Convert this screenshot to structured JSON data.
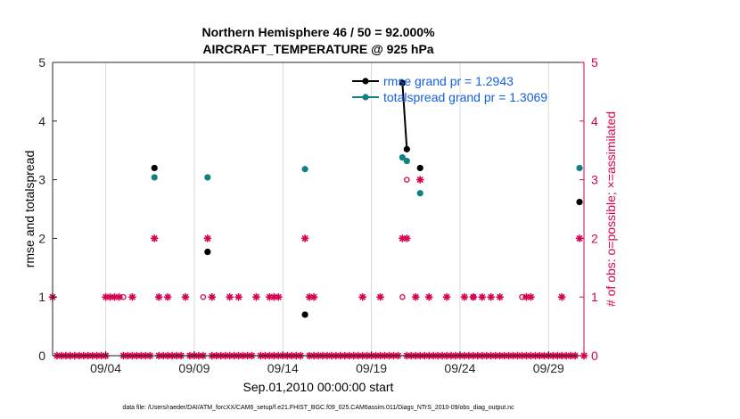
{
  "chart_data": {
    "type": "scatter",
    "title_line1": "Northern Hemisphere 46 / 50 = 92.000%",
    "title_line2": "AIRCRAFT_TEMPERATURE @ 925 hPa",
    "ylabel_left": "rmse and totalspread",
    "ylabel_right": "# of obs: o=possible; ×=assimilated",
    "xlabel": "Sep.01,2010 00:00:00 start",
    "footer": "data file: /Users/raeder/DAI/ATM_forcXX/CAM6_setup/f.e21.FHIST_BGC.f09_025.CAM6assim.011/Diags_NTrS_2010-09/obs_diag_output.nc",
    "xlim": [
      0,
      30
    ],
    "ylim_left": [
      0,
      5
    ],
    "ylim_right": [
      0,
      5
    ],
    "yticks_left": [
      "0",
      "1",
      "2",
      "3",
      "4",
      "5"
    ],
    "yticks_right": [
      "0",
      "1",
      "2",
      "3",
      "4",
      "5"
    ],
    "xticks": [
      {
        "x": 3.0,
        "label": "09/04"
      },
      {
        "x": 8.0,
        "label": "09/09"
      },
      {
        "x": 13.0,
        "label": "09/14"
      },
      {
        "x": 18.0,
        "label": "09/19"
      },
      {
        "x": 23.0,
        "label": "09/24"
      },
      {
        "x": 28.0,
        "label": "09/29"
      }
    ],
    "colors": {
      "rmse": "#000000",
      "spread": "#108080",
      "obs": "#d6004f",
      "legend_text": "#1560e0",
      "right_axis": "#d6004f"
    },
    "legend": [
      {
        "series": "rmse",
        "label": "rmse grand pr = 1.2943"
      },
      {
        "series": "spread",
        "label": "totalspread grand pr = 1.3069"
      }
    ],
    "series": [
      {
        "name": "rmse",
        "axis": "left",
        "points": [
          [
            5.75,
            3.2
          ],
          [
            8.75,
            1.77
          ],
          [
            14.25,
            0.7
          ],
          [
            19.75,
            4.65
          ],
          [
            20.0,
            3.52
          ],
          [
            20.75,
            3.2
          ],
          [
            29.75,
            2.62
          ]
        ],
        "lines": [
          [
            [
              19.75,
              4.65
            ],
            [
              20.0,
              3.52
            ]
          ]
        ]
      },
      {
        "name": "spread",
        "axis": "left",
        "points": [
          [
            5.75,
            3.04
          ],
          [
            8.75,
            3.04
          ],
          [
            14.25,
            3.18
          ],
          [
            19.75,
            3.38
          ],
          [
            20.0,
            3.32
          ],
          [
            20.75,
            2.77
          ],
          [
            29.75,
            3.2
          ]
        ]
      },
      {
        "name": "assimilated",
        "axis": "right",
        "points": [
          [
            0.0,
            1
          ],
          [
            0.25,
            0
          ],
          [
            0.5,
            0
          ],
          [
            0.75,
            0
          ],
          [
            1.0,
            0
          ],
          [
            1.25,
            0
          ],
          [
            1.5,
            0
          ],
          [
            1.75,
            0
          ],
          [
            2.0,
            0
          ],
          [
            2.25,
            0
          ],
          [
            2.5,
            0
          ],
          [
            2.75,
            0
          ],
          [
            3.0,
            0
          ],
          [
            3.0,
            1
          ],
          [
            3.25,
            1
          ],
          [
            3.5,
            1
          ],
          [
            3.75,
            1
          ],
          [
            4.0,
            0
          ],
          [
            4.25,
            0
          ],
          [
            4.5,
            0
          ],
          [
            4.5,
            1
          ],
          [
            4.75,
            0
          ],
          [
            5.0,
            0
          ],
          [
            5.25,
            0
          ],
          [
            5.5,
            0
          ],
          [
            5.75,
            2
          ],
          [
            6.0,
            0
          ],
          [
            6.0,
            1
          ],
          [
            6.25,
            0
          ],
          [
            6.5,
            0
          ],
          [
            6.5,
            1
          ],
          [
            6.75,
            0
          ],
          [
            7.0,
            0
          ],
          [
            7.25,
            0
          ],
          [
            7.5,
            1
          ],
          [
            7.75,
            0
          ],
          [
            8.0,
            0
          ],
          [
            8.25,
            0
          ],
          [
            8.5,
            0
          ],
          [
            8.75,
            2
          ],
          [
            9.0,
            0
          ],
          [
            9.0,
            1
          ],
          [
            9.25,
            0
          ],
          [
            9.5,
            0
          ],
          [
            9.75,
            0
          ],
          [
            10.0,
            0
          ],
          [
            10.0,
            1
          ],
          [
            10.25,
            0
          ],
          [
            10.5,
            0
          ],
          [
            10.5,
            1
          ],
          [
            10.75,
            0
          ],
          [
            11.0,
            0
          ],
          [
            11.25,
            0
          ],
          [
            11.5,
            1
          ],
          [
            11.75,
            0
          ],
          [
            12.0,
            0
          ],
          [
            12.25,
            0
          ],
          [
            12.25,
            1
          ],
          [
            12.5,
            0
          ],
          [
            12.5,
            1
          ],
          [
            12.75,
            0
          ],
          [
            12.75,
            1
          ],
          [
            13.0,
            0
          ],
          [
            13.25,
            0
          ],
          [
            13.5,
            0
          ],
          [
            13.75,
            0
          ],
          [
            14.0,
            0
          ],
          [
            14.25,
            2
          ],
          [
            14.5,
            0
          ],
          [
            14.5,
            1
          ],
          [
            14.75,
            0
          ],
          [
            14.75,
            1
          ],
          [
            15.0,
            0
          ],
          [
            15.25,
            0
          ],
          [
            15.5,
            0
          ],
          [
            15.75,
            0
          ],
          [
            16.0,
            0
          ],
          [
            16.25,
            0
          ],
          [
            16.5,
            0
          ],
          [
            16.75,
            0
          ],
          [
            17.0,
            0
          ],
          [
            17.25,
            0
          ],
          [
            17.5,
            0
          ],
          [
            17.5,
            1
          ],
          [
            17.75,
            0
          ],
          [
            18.0,
            0
          ],
          [
            18.25,
            0
          ],
          [
            18.5,
            0
          ],
          [
            18.5,
            1
          ],
          [
            18.75,
            0
          ],
          [
            19.0,
            0
          ],
          [
            19.25,
            0
          ],
          [
            19.5,
            0
          ],
          [
            19.75,
            2
          ],
          [
            20.0,
            0
          ],
          [
            20.0,
            2
          ],
          [
            20.25,
            0
          ],
          [
            20.5,
            0
          ],
          [
            20.5,
            1
          ],
          [
            20.75,
            0
          ],
          [
            20.75,
            3
          ],
          [
            21.0,
            0
          ],
          [
            21.25,
            0
          ],
          [
            21.25,
            1
          ],
          [
            21.5,
            0
          ],
          [
            21.75,
            0
          ],
          [
            22.0,
            0
          ],
          [
            22.25,
            0
          ],
          [
            22.25,
            1
          ],
          [
            22.5,
            0
          ],
          [
            22.75,
            0
          ],
          [
            23.0,
            0
          ],
          [
            23.25,
            0
          ],
          [
            23.25,
            1
          ],
          [
            23.5,
            0
          ],
          [
            23.75,
            0
          ],
          [
            23.75,
            1
          ],
          [
            24.0,
            0
          ],
          [
            24.25,
            0
          ],
          [
            24.25,
            1
          ],
          [
            24.5,
            0
          ],
          [
            24.75,
            0
          ],
          [
            24.75,
            1
          ],
          [
            25.0,
            0
          ],
          [
            25.25,
            0
          ],
          [
            25.25,
            1
          ],
          [
            25.5,
            0
          ],
          [
            25.75,
            0
          ],
          [
            26.0,
            0
          ],
          [
            26.25,
            0
          ],
          [
            26.5,
            0
          ],
          [
            26.75,
            0
          ],
          [
            26.75,
            1
          ],
          [
            27.0,
            0
          ],
          [
            27.0,
            1
          ],
          [
            27.25,
            0
          ],
          [
            27.5,
            0
          ],
          [
            27.75,
            0
          ],
          [
            28.0,
            0
          ],
          [
            28.25,
            0
          ],
          [
            28.5,
            0
          ],
          [
            28.75,
            0
          ],
          [
            28.75,
            1
          ],
          [
            29.0,
            0
          ],
          [
            29.25,
            0
          ],
          [
            29.5,
            0
          ],
          [
            29.75,
            2
          ],
          [
            30.0,
            0
          ]
        ]
      },
      {
        "name": "possible",
        "axis": "right",
        "points": [
          [
            4.0,
            1
          ],
          [
            8.5,
            1
          ],
          [
            19.75,
            1
          ],
          [
            20.0,
            3
          ],
          [
            23.75,
            1
          ],
          [
            26.5,
            1
          ]
        ]
      }
    ]
  }
}
